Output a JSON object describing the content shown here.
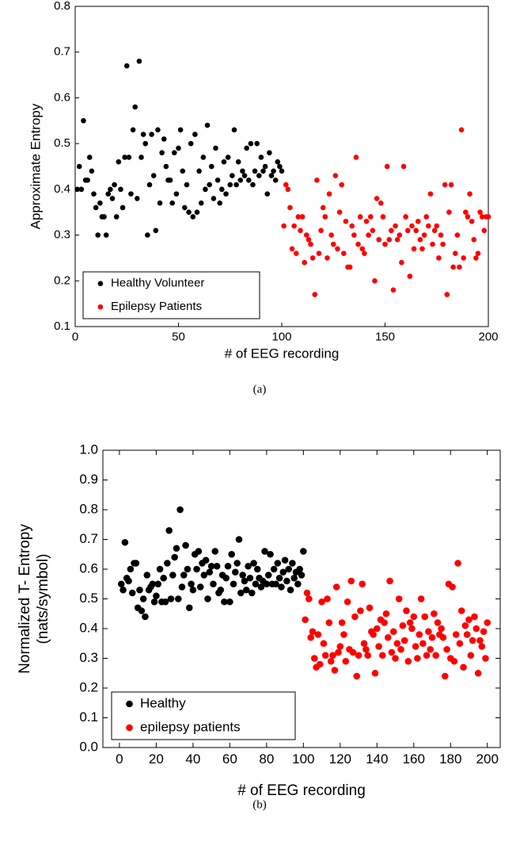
{
  "chart_data": [
    {
      "type": "scatter",
      "caption": "(a)",
      "xlabel": "# of EEG recording",
      "ylabel": [
        "Approximate  Entropy"
      ],
      "xlim": [
        0,
        200
      ],
      "xticks": [
        0,
        50,
        100,
        150,
        200
      ],
      "ylim": [
        0.1,
        0.8
      ],
      "yticks": [
        0.1,
        0.2,
        0.3,
        0.4,
        0.5,
        0.6,
        0.7,
        0.8
      ],
      "legend": "lower left",
      "series": [
        {
          "name": "Healthy Volunteer",
          "color": "#000000",
          "x": [
            1,
            2,
            3,
            4,
            5,
            6,
            7,
            8,
            9,
            10,
            11,
            12,
            13,
            14,
            15,
            16,
            17,
            18,
            19,
            20,
            21,
            22,
            23,
            24,
            25,
            26,
            27,
            28,
            29,
            30,
            31,
            32,
            33,
            34,
            35,
            36,
            37,
            38,
            39,
            40,
            41,
            42,
            43,
            44,
            45,
            46,
            47,
            48,
            49,
            50,
            51,
            52,
            53,
            54,
            55,
            56,
            57,
            58,
            59,
            60,
            61,
            62,
            63,
            64,
            65,
            66,
            67,
            68,
            69,
            70,
            71,
            72,
            73,
            74,
            75,
            76,
            77,
            78,
            79,
            80,
            81,
            82,
            83,
            84,
            85,
            86,
            87,
            88,
            89,
            90,
            91,
            92,
            93,
            94,
            95,
            96,
            97,
            98,
            99,
            100
          ],
          "values": [
            0.4,
            0.45,
            0.4,
            0.55,
            0.42,
            0.42,
            0.47,
            0.44,
            0.39,
            0.36,
            0.3,
            0.37,
            0.34,
            0.34,
            0.3,
            0.39,
            0.4,
            0.38,
            0.41,
            0.34,
            0.46,
            0.4,
            0.36,
            0.47,
            0.67,
            0.47,
            0.39,
            0.53,
            0.58,
            0.38,
            0.68,
            0.47,
            0.52,
            0.5,
            0.3,
            0.41,
            0.52,
            0.43,
            0.31,
            0.53,
            0.37,
            0.48,
            0.51,
            0.45,
            0.42,
            0.42,
            0.37,
            0.48,
            0.39,
            0.49,
            0.53,
            0.44,
            0.36,
            0.41,
            0.35,
            0.5,
            0.34,
            0.52,
            0.35,
            0.44,
            0.37,
            0.47,
            0.4,
            0.54,
            0.41,
            0.45,
            0.38,
            0.49,
            0.42,
            0.37,
            0.4,
            0.46,
            0.39,
            0.47,
            0.41,
            0.43,
            0.53,
            0.41,
            0.46,
            0.42,
            0.44,
            0.43,
            0.49,
            0.42,
            0.5,
            0.41,
            0.44,
            0.5,
            0.43,
            0.47,
            0.44,
            0.45,
            0.39,
            0.48,
            0.43,
            0.44,
            0.42,
            0.46,
            0.45,
            0.44
          ]
        },
        {
          "name": "Epilepsy Patients",
          "color": "#ff0000",
          "x": [
            101,
            102,
            103,
            104,
            105,
            106,
            107,
            108,
            109,
            110,
            111,
            112,
            113,
            114,
            115,
            116,
            117,
            118,
            119,
            120,
            121,
            122,
            123,
            124,
            125,
            126,
            127,
            128,
            129,
            130,
            131,
            132,
            133,
            134,
            135,
            136,
            137,
            138,
            139,
            140,
            141,
            142,
            143,
            144,
            145,
            146,
            147,
            148,
            149,
            150,
            151,
            152,
            153,
            154,
            155,
            156,
            157,
            158,
            159,
            160,
            161,
            162,
            163,
            164,
            165,
            166,
            167,
            168,
            169,
            170,
            171,
            172,
            173,
            174,
            175,
            176,
            177,
            178,
            179,
            180,
            181,
            182,
            183,
            184,
            185,
            186,
            187,
            188,
            189,
            190,
            191,
            192,
            193,
            194,
            195,
            196,
            197,
            198,
            199,
            200
          ],
          "values": [
            0.32,
            0.41,
            0.4,
            0.36,
            0.27,
            0.32,
            0.26,
            0.34,
            0.31,
            0.34,
            0.24,
            0.3,
            0.29,
            0.28,
            0.25,
            0.17,
            0.42,
            0.26,
            0.31,
            0.36,
            0.34,
            0.25,
            0.39,
            0.3,
            0.28,
            0.43,
            0.27,
            0.35,
            0.41,
            0.26,
            0.33,
            0.23,
            0.23,
            0.32,
            0.3,
            0.47,
            0.28,
            0.34,
            0.27,
            0.26,
            0.33,
            0.3,
            0.34,
            0.31,
            0.2,
            0.38,
            0.29,
            0.37,
            0.34,
            0.28,
            0.45,
            0.29,
            0.31,
            0.18,
            0.32,
            0.29,
            0.3,
            0.24,
            0.45,
            0.34,
            0.31,
            0.21,
            0.32,
            0.27,
            0.31,
            0.33,
            0.29,
            0.27,
            0.3,
            0.34,
            0.32,
            0.39,
            0.28,
            0.31,
            0.32,
            0.25,
            0.3,
            0.28,
            0.41,
            0.17,
            0.35,
            0.41,
            0.23,
            0.26,
            0.3,
            0.23,
            0.53,
            0.25,
            0.35,
            0.34,
            0.39,
            0.33,
            0.29,
            0.25,
            0.26,
            0.35,
            0.34,
            0.31,
            0.34,
            0.34
          ]
        }
      ]
    },
    {
      "type": "scatter",
      "caption": "(b)",
      "xlabel": "# of EEG recording",
      "ylabel": [
        "Normalized  T- Entropy",
        "(nats/symbol)"
      ],
      "xlim": [
        -9,
        207
      ],
      "xticks": [
        0,
        20,
        40,
        60,
        80,
        100,
        120,
        140,
        160,
        180,
        200
      ],
      "ylim": [
        0,
        1
      ],
      "yticks": [
        {
          "value": 0,
          "label": "0.0"
        },
        0.1,
        0.2,
        0.3,
        0.4,
        0.5,
        0.6,
        0.7,
        0.8,
        0.9,
        {
          "value": 1,
          "label": "1.0"
        }
      ],
      "legend": "lower left",
      "series": [
        {
          "name": "Healthy",
          "color": "#000000",
          "x": [
            1,
            2,
            3,
            4,
            5,
            6,
            7,
            8,
            9,
            10,
            11,
            12,
            13,
            14,
            15,
            16,
            17,
            18,
            19,
            20,
            21,
            22,
            23,
            24,
            25,
            26,
            27,
            28,
            29,
            30,
            31,
            32,
            33,
            34,
            35,
            36,
            37,
            38,
            39,
            40,
            41,
            42,
            43,
            44,
            45,
            46,
            47,
            48,
            49,
            50,
            51,
            52,
            53,
            54,
            55,
            56,
            57,
            58,
            59,
            60,
            61,
            62,
            63,
            64,
            65,
            66,
            67,
            68,
            69,
            70,
            71,
            72,
            73,
            74,
            75,
            76,
            77,
            78,
            79,
            80,
            81,
            82,
            83,
            84,
            85,
            86,
            87,
            88,
            89,
            90,
            91,
            92,
            93,
            94,
            95,
            96,
            97,
            98,
            99,
            100
          ],
          "values": [
            0.55,
            0.53,
            0.69,
            0.57,
            0.56,
            0.6,
            0.52,
            0.62,
            0.62,
            0.47,
            0.53,
            0.46,
            0.5,
            0.44,
            0.58,
            0.53,
            0.54,
            0.55,
            0.49,
            0.51,
            0.55,
            0.6,
            0.49,
            0.57,
            0.49,
            0.62,
            0.73,
            0.5,
            0.58,
            0.64,
            0.67,
            0.5,
            0.8,
            0.54,
            0.58,
            0.68,
            0.6,
            0.47,
            0.55,
            0.53,
            0.65,
            0.6,
            0.66,
            0.54,
            0.62,
            0.58,
            0.63,
            0.5,
            0.59,
            0.61,
            0.55,
            0.66,
            0.61,
            0.52,
            0.53,
            0.58,
            0.49,
            0.57,
            0.61,
            0.49,
            0.65,
            0.55,
            0.59,
            0.62,
            0.7,
            0.52,
            0.58,
            0.56,
            0.53,
            0.61,
            0.57,
            0.52,
            0.62,
            0.55,
            0.6,
            0.57,
            0.54,
            0.56,
            0.66,
            0.55,
            0.58,
            0.65,
            0.55,
            0.6,
            0.55,
            0.62,
            0.57,
            0.54,
            0.59,
            0.63,
            0.56,
            0.6,
            0.53,
            0.62,
            0.57,
            0.59,
            0.55,
            0.6,
            0.58,
            0.66
          ]
        },
        {
          "name": "epilepsy patients",
          "color": "#ff0000",
          "x": [
            101,
            102,
            103,
            104,
            105,
            106,
            107,
            108,
            109,
            110,
            111,
            112,
            113,
            114,
            115,
            116,
            117,
            118,
            119,
            120,
            121,
            122,
            123,
            124,
            125,
            126,
            127,
            128,
            129,
            130,
            131,
            132,
            133,
            134,
            135,
            136,
            137,
            138,
            139,
            140,
            141,
            142,
            143,
            144,
            145,
            146,
            147,
            148,
            149,
            150,
            151,
            152,
            153,
            154,
            155,
            156,
            157,
            158,
            159,
            160,
            161,
            162,
            163,
            164,
            165,
            166,
            167,
            168,
            169,
            170,
            171,
            172,
            173,
            174,
            175,
            176,
            177,
            178,
            179,
            180,
            181,
            182,
            183,
            184,
            185,
            186,
            187,
            188,
            189,
            190,
            191,
            192,
            193,
            194,
            195,
            196,
            197,
            198,
            199,
            200
          ],
          "values": [
            0.43,
            0.52,
            0.5,
            0.37,
            0.39,
            0.3,
            0.27,
            0.38,
            0.28,
            0.49,
            0.35,
            0.31,
            0.5,
            0.42,
            0.29,
            0.31,
            0.26,
            0.54,
            0.32,
            0.34,
            0.42,
            0.38,
            0.29,
            0.49,
            0.33,
            0.56,
            0.32,
            0.44,
            0.24,
            0.31,
            0.46,
            0.55,
            0.35,
            0.33,
            0.31,
            0.47,
            0.39,
            0.38,
            0.25,
            0.4,
            0.34,
            0.43,
            0.31,
            0.42,
            0.45,
            0.37,
            0.56,
            0.32,
            0.39,
            0.3,
            0.35,
            0.5,
            0.33,
            0.41,
            0.36,
            0.46,
            0.29,
            0.42,
            0.4,
            0.44,
            0.34,
            0.3,
            0.38,
            0.5,
            0.35,
            0.44,
            0.31,
            0.39,
            0.33,
            0.37,
            0.45,
            0.31,
            0.42,
            0.38,
            0.4,
            0.37,
            0.24,
            0.33,
            0.55,
            0.3,
            0.54,
            0.29,
            0.38,
            0.62,
            0.35,
            0.46,
            0.27,
            0.41,
            0.38,
            0.43,
            0.31,
            0.36,
            0.44,
            0.4,
            0.25,
            0.36,
            0.34,
            0.39,
            0.3,
            0.42
          ]
        }
      ]
    }
  ]
}
